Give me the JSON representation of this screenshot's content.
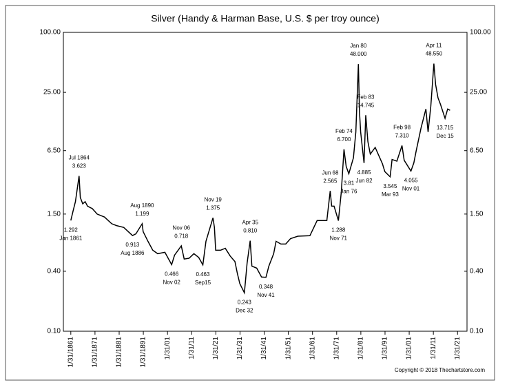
{
  "chart_data": {
    "type": "line",
    "title": "Silver (Handy & Harman Base, U.S. $ per troy ounce)",
    "copyright": "Copyright © 2018 Thechartstore.com",
    "log_y": true,
    "color": "#000000",
    "x": [
      1861.08,
      1862,
      1863,
      1864.5,
      1865,
      1866,
      1867,
      1868,
      1870,
      1872,
      1875,
      1878,
      1880,
      1883,
      1886.6,
      1888,
      1890.6,
      1891,
      1893,
      1895,
      1897,
      1900,
      1902.8,
      1904,
      1906.8,
      1908,
      1910,
      1912,
      1914,
      1915.7,
      1917,
      1919.9,
      1920.5,
      1921,
      1923,
      1925,
      1927,
      1929,
      1930,
      1931,
      1932.9,
      1933.5,
      1934,
      1935.3,
      1936,
      1938,
      1940,
      1941.8,
      1943,
      1945,
      1946,
      1948,
      1950,
      1952,
      1955,
      1960,
      1963,
      1967,
      1968.4,
      1969,
      1970,
      1971.8,
      1973,
      1974.1,
      1975,
      1976.1,
      1978,
      1979,
      1980.05,
      1980.5,
      1981,
      1982.4,
      1983.1,
      1984,
      1985,
      1987,
      1990,
      1991,
      1993.2,
      1994,
      1996,
      1998.1,
      1999,
      2001.8,
      2003,
      2004,
      2006,
      2008,
      2008.9,
      2010,
      2011.3,
      2012,
      2013,
      2014,
      2015.9,
      2017,
      2018
    ],
    "values": [
      1.292,
      1.6,
      2.0,
      3.623,
      2.2,
      1.9,
      2.0,
      1.8,
      1.7,
      1.5,
      1.4,
      1.2,
      1.15,
      1.1,
      0.913,
      0.95,
      1.199,
      1.0,
      0.8,
      0.65,
      0.6,
      0.62,
      0.466,
      0.58,
      0.718,
      0.53,
      0.54,
      0.6,
      0.55,
      0.463,
      0.8,
      1.375,
      1.1,
      0.65,
      0.65,
      0.68,
      0.57,
      0.5,
      0.38,
      0.3,
      0.243,
      0.35,
      0.48,
      0.81,
      0.45,
      0.43,
      0.35,
      0.348,
      0.45,
      0.6,
      0.8,
      0.75,
      0.75,
      0.85,
      0.9,
      0.91,
      1.29,
      1.29,
      2.565,
      1.8,
      1.8,
      1.288,
      2.5,
      6.7,
      4.5,
      3.81,
      5.5,
      10,
      48,
      16,
      10,
      4.885,
      14.745,
      8,
      6,
      7,
      4.8,
      4.0,
      3.545,
      5.3,
      5.1,
      7.31,
      5.2,
      4.055,
      4.9,
      6.5,
      11,
      17,
      10,
      18,
      48.55,
      30,
      22,
      19,
      13.715,
      17,
      16.5
    ],
    "xlim": [
      1858,
      2025
    ],
    "ylim": [
      0.1,
      100
    ],
    "yticks": [
      {
        "value": 100,
        "label": "100.00"
      },
      {
        "value": 25,
        "label": "25.00"
      },
      {
        "value": 6.5,
        "label": "6.50"
      },
      {
        "value": 1.5,
        "label": "1.50"
      },
      {
        "value": 0.4,
        "label": "0.40"
      },
      {
        "value": 0.1,
        "label": "0.10"
      }
    ],
    "xticks": [
      {
        "value": 1861.08,
        "label": "1/31/1861"
      },
      {
        "value": 1871.08,
        "label": "1/31/1871"
      },
      {
        "value": 1881.08,
        "label": "1/31/1881"
      },
      {
        "value": 1891.08,
        "label": "1/31/1891"
      },
      {
        "value": 1901.08,
        "label": "1/31/01"
      },
      {
        "value": 1911.08,
        "label": "1/31/11"
      },
      {
        "value": 1921.08,
        "label": "1/31/21"
      },
      {
        "value": 1931.08,
        "label": "1/31/31"
      },
      {
        "value": 1941.08,
        "label": "1/31/41"
      },
      {
        "value": 1951.08,
        "label": "1/31/51"
      },
      {
        "value": 1961.08,
        "label": "1/31/61"
      },
      {
        "value": 1971.08,
        "label": "1/31/71"
      },
      {
        "value": 1981.08,
        "label": "1/31/81"
      },
      {
        "value": 1991.08,
        "label": "1/31/91"
      },
      {
        "value": 2001.08,
        "label": "1/31/01"
      },
      {
        "value": 2011.08,
        "label": "1/31/11"
      },
      {
        "value": 2021.08,
        "label": "1/31/21"
      }
    ],
    "annotations": [
      {
        "text": "Jan 1861",
        "value": 1.292,
        "value_label": "1.292",
        "x": 1861.08,
        "place": "below"
      },
      {
        "text": "Jul 1864",
        "value": 3.623,
        "value_label": "3.623",
        "x": 1864.5,
        "place": "above"
      },
      {
        "text": "Aug 1886",
        "value": 0.913,
        "value_label": "0.913",
        "x": 1886.6,
        "place": "below"
      },
      {
        "text": "Aug 1890",
        "value": 1.199,
        "value_label": "1.199",
        "x": 1890.6,
        "place": "above"
      },
      {
        "text": "Nov 02",
        "value": 0.466,
        "value_label": "0.466",
        "x": 1902.8,
        "place": "below"
      },
      {
        "text": "Nov 06",
        "value": 0.718,
        "value_label": "0.718",
        "x": 1906.8,
        "place": "above"
      },
      {
        "text": "Sep15",
        "value": 0.463,
        "value_label": "0.463",
        "x": 1915.7,
        "place": "below"
      },
      {
        "text": "Nov 19",
        "value": 1.375,
        "value_label": "1.375",
        "x": 1919.9,
        "place": "above"
      },
      {
        "text": "Dec 32",
        "value": 0.243,
        "value_label": "0.243",
        "x": 1932.9,
        "place": "below"
      },
      {
        "text": "Apr 35",
        "value": 0.81,
        "value_label": "0.810",
        "x": 1935.3,
        "place": "above"
      },
      {
        "text": "Nov 41",
        "value": 0.348,
        "value_label": "0.348",
        "x": 1941.8,
        "place": "below"
      },
      {
        "text": "Jun 68",
        "value": 2.565,
        "value_label": "2.565",
        "x": 1968.4,
        "place": "above"
      },
      {
        "text": "Nov 71",
        "value": 1.288,
        "value_label": "1.288",
        "x": 1971.8,
        "place": "below"
      },
      {
        "text": "Feb 74",
        "value": 6.7,
        "value_label": "6.700",
        "x": 1974.1,
        "place": "above"
      },
      {
        "text": "Jan 76",
        "value": 3.81,
        "value_label": "3.81",
        "x": 1976.1,
        "place": "below"
      },
      {
        "text": "Jan 80",
        "value": 48,
        "value_label": "48.000",
        "x": 1980.05,
        "place": "above"
      },
      {
        "text": "Jun 82",
        "value": 4.885,
        "value_label": "4.885",
        "x": 1982.4,
        "place": "below"
      },
      {
        "text": "Feb 83",
        "value": 14.745,
        "value_label": "14.745",
        "x": 1983.1,
        "place": "above"
      },
      {
        "text": "Mar 93",
        "value": 3.545,
        "value_label": "3.545",
        "x": 1993.2,
        "place": "below"
      },
      {
        "text": "Feb 98",
        "value": 7.31,
        "value_label": "7.310",
        "x": 1998.1,
        "place": "above"
      },
      {
        "text": "Nov 01",
        "value": 4.055,
        "value_label": "4.055",
        "x": 2001.8,
        "place": "below"
      },
      {
        "text": "Apr 11",
        "value": 48.55,
        "value_label": "48.550",
        "x": 2011.3,
        "place": "above"
      },
      {
        "text": "Dec 15",
        "value": 13.715,
        "value_label": "13.715",
        "x": 2015.9,
        "place": "below"
      }
    ]
  }
}
